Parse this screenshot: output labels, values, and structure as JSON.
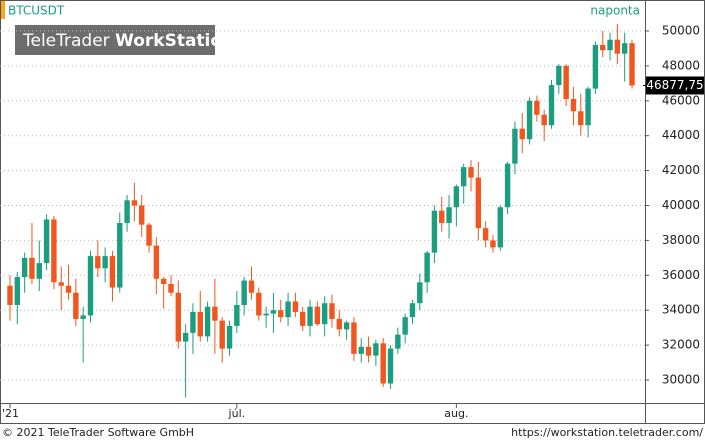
{
  "chart_data": {
    "type": "candlestick",
    "title": "BTCUSDT",
    "subtitle": "naponta",
    "watermark": {
      "brand": "TeleTrader",
      "product": "WorkStation"
    },
    "categories": [
      "'21",
      null,
      null,
      null,
      null,
      null,
      null,
      null,
      null,
      null,
      null,
      null,
      null,
      null,
      null,
      null,
      null,
      null,
      null,
      null,
      null,
      null,
      null,
      null,
      null,
      null,
      null,
      null,
      null,
      null,
      null,
      "júl.",
      null,
      null,
      null,
      null,
      null,
      null,
      null,
      null,
      null,
      null,
      null,
      null,
      null,
      null,
      null,
      null,
      null,
      null,
      null,
      null,
      null,
      null,
      null,
      null,
      null,
      null,
      null,
      null,
      null,
      "aug.",
      null,
      null,
      null,
      null,
      null,
      null,
      null,
      null,
      null,
      null,
      null,
      null,
      null,
      null,
      null,
      null,
      null,
      null,
      null,
      null,
      null,
      null,
      null,
      null
    ],
    "open": [
      35400,
      34300,
      35900,
      37000,
      35800,
      36700,
      39200,
      35600,
      35400,
      35000,
      33500,
      33700,
      37100,
      36400,
      37100,
      35300,
      39000,
      40300,
      40000,
      38900,
      37700,
      35800,
      35500,
      35000,
      32200,
      32700,
      33900,
      32500,
      34200,
      33400,
      31800,
      33100,
      34300,
      35700,
      35000,
      33700,
      33800,
      34000,
      33600,
      34500,
      33900,
      33100,
      34200,
      33200,
      34400,
      33500,
      32900,
      33300,
      31500,
      31900,
      31400,
      32100,
      29800,
      31800,
      32600,
      33600,
      34400,
      35600,
      37300,
      39700,
      39000,
      39900,
      41100,
      42200,
      41600,
      38700,
      38000,
      37600,
      39900,
      42400,
      44400,
      43800,
      46000,
      45200,
      44600,
      46900,
      48000,
      46100,
      45400,
      44600,
      46700,
      49200,
      48900,
      49500,
      48700,
      49300
    ],
    "high": [
      36000,
      36200,
      37300,
      39000,
      38000,
      39500,
      39400,
      36500,
      36600,
      35800,
      34200,
      37400,
      38000,
      37600,
      37400,
      39600,
      40600,
      41300,
      40600,
      39000,
      38200,
      35900,
      36000,
      35700,
      33200,
      34400,
      35100,
      34500,
      35800,
      33600,
      33400,
      35100,
      35900,
      36500,
      35300,
      34200,
      35000,
      34600,
      35000,
      35000,
      34200,
      34600,
      34500,
      34800,
      34900,
      34000,
      33400,
      33600,
      32400,
      32500,
      32300,
      32400,
      32000,
      33000,
      33800,
      34600,
      36100,
      37400,
      40000,
      40500,
      40600,
      41200,
      42400,
      42600,
      42500,
      39100,
      38300,
      40000,
      42500,
      44800,
      45300,
      46200,
      46300,
      45500,
      47200,
      48100,
      48100,
      46800,
      46400,
      46800,
      49400,
      50000,
      49900,
      50400,
      49900,
      49500
    ],
    "low": [
      33400,
      33200,
      35000,
      35500,
      35100,
      36300,
      35200,
      34000,
      34600,
      33100,
      31000,
      33300,
      35900,
      35600,
      34500,
      35000,
      38500,
      39100,
      38200,
      37300,
      34900,
      34100,
      34800,
      31800,
      29000,
      31500,
      32200,
      32200,
      31500,
      31000,
      31400,
      32700,
      33700,
      34600,
      33400,
      33000,
      32700,
      33300,
      33100,
      33600,
      32800,
      32500,
      33100,
      32500,
      33000,
      32500,
      32300,
      31100,
      31000,
      31000,
      30800,
      29600,
      29500,
      31500,
      32100,
      33200,
      34000,
      35000,
      36700,
      38500,
      38100,
      38800,
      40100,
      40800,
      38000,
      37600,
      37300,
      37400,
      39500,
      41800,
      43000,
      43500,
      44800,
      43700,
      44400,
      46400,
      45700,
      44600,
      44000,
      43900,
      46400,
      48500,
      48300,
      48100,
      47100,
      46700
    ],
    "close": [
      34300,
      35900,
      37000,
      35800,
      36700,
      39200,
      35600,
      35400,
      35000,
      33500,
      33700,
      37100,
      36400,
      37100,
      35300,
      39000,
      40300,
      40000,
      38900,
      37700,
      35800,
      35500,
      35000,
      32200,
      32700,
      33900,
      32500,
      34200,
      33400,
      31800,
      33100,
      34300,
      35700,
      35000,
      33700,
      33800,
      34000,
      33600,
      34500,
      33900,
      33100,
      34200,
      33200,
      34400,
      33500,
      32900,
      33300,
      31500,
      31900,
      31400,
      32100,
      29800,
      31800,
      32600,
      33600,
      34400,
      35600,
      37300,
      39700,
      39000,
      39900,
      41100,
      42200,
      41600,
      38700,
      38000,
      37600,
      39900,
      42400,
      44400,
      43800,
      46000,
      45200,
      44600,
      46900,
      48000,
      46100,
      45400,
      44600,
      46700,
      49200,
      48900,
      49500,
      48700,
      49300,
      46877.75
    ],
    "up_color": "#1b9e80",
    "down_color": "#f0561d",
    "ylim": [
      28682,
      51776
    ],
    "yticks": [
      30000,
      32000,
      34000,
      36000,
      38000,
      40000,
      42000,
      44000,
      46000,
      48000,
      50000
    ],
    "grid": true,
    "last_price": {
      "value": 46877.75,
      "label": "46877,75"
    }
  },
  "footer": {
    "left": "© 2021 TeleTrader Software GmbH",
    "right": "https://workstation.teletrader.com/"
  }
}
